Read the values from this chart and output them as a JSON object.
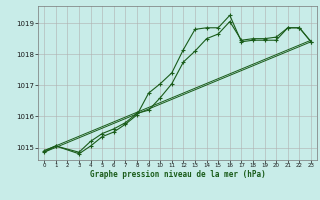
{
  "background_color": "#c8ece8",
  "line_color": "#1a5c1a",
  "grid_color": "#b0b0b0",
  "xlabel": "Graphe pression niveau de la mer (hPa)",
  "ylim": [
    1014.6,
    1019.55
  ],
  "xlim": [
    -0.5,
    23.5
  ],
  "yticks": [
    1015,
    1016,
    1017,
    1018,
    1019
  ],
  "xtick_labels": [
    "0",
    "1",
    "2",
    "3",
    "4",
    "5",
    "6",
    "7",
    "8",
    "9",
    "10",
    "11",
    "12",
    "13",
    "14",
    "15",
    "16",
    "17",
    "18",
    "19",
    "20",
    "21",
    "22",
    "23"
  ],
  "series1_x": [
    0,
    1,
    3,
    4,
    5,
    6,
    7,
    8,
    9,
    10,
    11,
    12,
    13,
    14,
    15,
    16,
    17,
    18,
    19,
    20,
    21,
    22,
    23
  ],
  "series1_y": [
    1014.85,
    1015.05,
    1014.8,
    1015.05,
    1015.35,
    1015.5,
    1015.75,
    1016.05,
    1016.75,
    1017.05,
    1017.4,
    1018.15,
    1018.8,
    1018.85,
    1018.85,
    1019.25,
    1018.4,
    1018.45,
    1018.45,
    1018.45,
    1018.85,
    1018.85,
    1018.4
  ],
  "series2_x": [
    0,
    1,
    3,
    4,
    5,
    6,
    7,
    8,
    9,
    10,
    11,
    12,
    13,
    14,
    15,
    16,
    17,
    18,
    19,
    20,
    21,
    22,
    23
  ],
  "series2_y": [
    1014.9,
    1015.05,
    1014.85,
    1015.2,
    1015.45,
    1015.6,
    1015.8,
    1016.1,
    1016.2,
    1016.6,
    1017.05,
    1017.75,
    1018.1,
    1018.5,
    1018.65,
    1019.05,
    1018.45,
    1018.5,
    1018.5,
    1018.55,
    1018.85,
    1018.85,
    1018.4
  ],
  "series3_x": [
    0,
    23
  ],
  "series3_y": [
    1014.85,
    1018.4
  ],
  "series4_x": [
    0,
    23
  ],
  "series4_y": [
    1014.9,
    1018.45
  ]
}
